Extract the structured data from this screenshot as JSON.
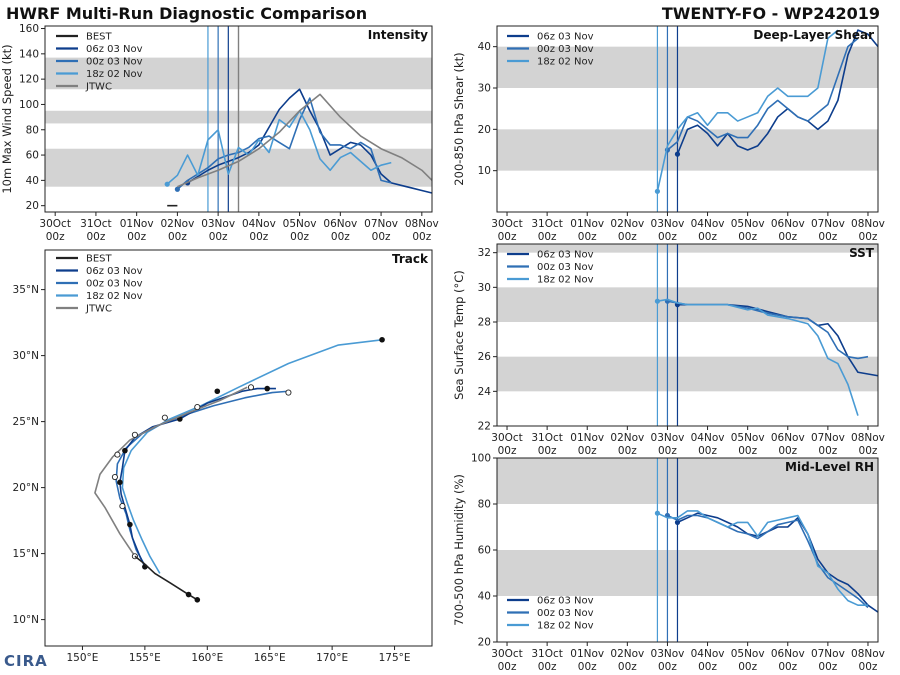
{
  "header": {
    "left_title": "HWRF Multi-Run Diagnostic Comparison",
    "right_title": "TWENTY-FO - WP242019"
  },
  "logo_text": "CIRA",
  "colors": {
    "best": "#222222",
    "run1": "#0d3d8c",
    "run2": "#2f6fb5",
    "run3": "#4a9bd4",
    "jtwc": "#808080",
    "band": "#d3d3d3",
    "vline1": "#4a9bd4",
    "vline2": "#2f6fb5",
    "vline3": "#0d3d8c"
  },
  "time_axis": {
    "ticks": [
      0,
      1,
      2,
      3,
      4,
      5,
      6,
      7,
      8,
      9,
      10,
      11
    ],
    "tick_labels_top": [
      "30Oct",
      "31Oct",
      "01Nov",
      "02Nov",
      "03Nov",
      "04Nov",
      "05Nov",
      "06Nov",
      "07Nov",
      "08Nov"
    ],
    "tick_labels_bottom": [
      "00z",
      "00z",
      "00z",
      "00z",
      "00z",
      "00z",
      "00z",
      "00z",
      "00z",
      "00z"
    ],
    "run_lines_days": [
      3.75,
      4.0,
      4.25
    ]
  },
  "chart_data": [
    {
      "id": "intensity",
      "type": "line",
      "title": "Intensity",
      "ylabel": "10m Max Wind Speed (kt)",
      "xlim": [
        -0.25,
        9.25
      ],
      "ylim": [
        15,
        162
      ],
      "yticks": [
        20,
        40,
        60,
        80,
        100,
        120,
        140,
        160
      ],
      "bands": [
        [
          35,
          65
        ],
        [
          85,
          95
        ],
        [
          112,
          137
        ]
      ],
      "legend": [
        "BEST",
        "06z 03 Nov",
        "00z 03 Nov",
        "18z 02 Nov",
        "JTWC"
      ],
      "series": [
        {
          "name": "BEST",
          "color_key": "best",
          "x": [
            2.75,
            3.0
          ],
          "y": [
            20,
            20
          ]
        },
        {
          "name": "06z 03 Nov",
          "color_key": "run1",
          "x": [
            3.25,
            3.5,
            3.75,
            4.0,
            4.25,
            4.5,
            4.75,
            5.0,
            5.25,
            5.5,
            5.75,
            6.0,
            6.25,
            6.5,
            6.75,
            7.0,
            7.25,
            7.5,
            7.75,
            8.0,
            8.25,
            8.5,
            8.75,
            9.0,
            9.25
          ],
          "y": [
            38,
            43,
            48,
            52,
            55,
            58,
            62,
            68,
            82,
            96,
            105,
            112,
            95,
            80,
            60,
            65,
            70,
            68,
            60,
            45,
            38,
            36,
            34,
            32,
            30
          ]
        },
        {
          "name": "00z 03 Nov",
          "color_key": "run2",
          "x": [
            3.0,
            3.25,
            3.5,
            3.75,
            4.0,
            4.25,
            4.5,
            4.75,
            5.0,
            5.25,
            5.5,
            5.75,
            6.0,
            6.25,
            6.5,
            6.75,
            7.0,
            7.25,
            7.5,
            7.75,
            8.0,
            8.25
          ],
          "y": [
            33,
            40,
            45,
            50,
            57,
            60,
            62,
            66,
            73,
            75,
            70,
            65,
            88,
            105,
            78,
            68,
            68,
            65,
            70,
            65,
            40,
            38
          ]
        },
        {
          "name": "18z 02 Nov",
          "color_key": "run3",
          "x": [
            2.75,
            3.0,
            3.25,
            3.5,
            3.75,
            4.0,
            4.25,
            4.5,
            4.75,
            5.0,
            5.25,
            5.5,
            5.75,
            6.0,
            6.25,
            6.5,
            6.75,
            7.0,
            7.25,
            7.5,
            7.75,
            8.0,
            8.25
          ],
          "y": [
            37,
            44,
            60,
            44,
            72,
            80,
            45,
            66,
            60,
            72,
            62,
            88,
            82,
            95,
            80,
            57,
            48,
            58,
            62,
            55,
            48,
            52,
            54
          ]
        },
        {
          "name": "JTWC",
          "color_key": "jtwc",
          "x": [
            3.0,
            3.5,
            4.0,
            4.5,
            5.0,
            5.5,
            6.0,
            6.5,
            7.0,
            7.5,
            8.0,
            8.5,
            9.0,
            9.25
          ],
          "y": [
            35,
            42,
            48,
            55,
            65,
            78,
            95,
            108,
            90,
            75,
            65,
            58,
            48,
            40
          ]
        }
      ]
    },
    {
      "id": "shear",
      "type": "line",
      "title": "Deep-Layer Shear",
      "ylabel": "200-850 hPa Shear (kt)",
      "xlim": [
        -0.25,
        9.25
      ],
      "ylim": [
        0,
        45
      ],
      "yticks": [
        10,
        20,
        30,
        40
      ],
      "bands": [
        [
          10,
          20
        ],
        [
          30,
          40
        ]
      ],
      "legend": [
        "06z 03 Nov",
        "00z 03 Nov",
        "18z 02 Nov"
      ],
      "series": [
        {
          "name": "06z 03 Nov",
          "color_key": "run1",
          "x": [
            4.25,
            4.5,
            4.75,
            5.0,
            5.25,
            5.5,
            5.75,
            6.0,
            6.25,
            6.5,
            6.75,
            7.0,
            7.25,
            7.5,
            7.75,
            8.0,
            8.25,
            8.5,
            8.75,
            9.0,
            9.25
          ],
          "y": [
            14,
            20,
            21,
            19,
            16,
            19,
            16,
            15,
            16,
            19,
            23,
            25,
            23,
            22,
            20,
            22,
            27,
            38,
            44,
            43,
            40
          ]
        },
        {
          "name": "00z 03 Nov",
          "color_key": "run2",
          "x": [
            4.0,
            4.25,
            4.5,
            4.75,
            5.0,
            5.25,
            5.5,
            5.75,
            6.0,
            6.25,
            6.5,
            6.75,
            7.0,
            7.25,
            7.5,
            7.75,
            8.0,
            8.25,
            8.5,
            8.75
          ],
          "y": [
            15,
            17,
            23,
            22,
            20,
            18,
            19,
            18,
            18,
            21,
            25,
            27,
            25,
            23,
            22,
            24,
            26,
            33,
            40,
            42
          ]
        },
        {
          "name": "18z 02 Nov",
          "color_key": "run3",
          "x": [
            3.75,
            4.0,
            4.25,
            4.5,
            4.75,
            5.0,
            5.25,
            5.5,
            5.75,
            6.0,
            6.25,
            6.5,
            6.75,
            7.0,
            7.25,
            7.5,
            7.75,
            8.0,
            8.25
          ],
          "y": [
            5,
            16,
            20,
            23,
            24,
            21,
            24,
            24,
            22,
            23,
            24,
            28,
            30,
            28,
            28,
            28,
            30,
            42,
            44
          ]
        }
      ]
    },
    {
      "id": "sst",
      "type": "line",
      "title": "SST",
      "ylabel": "Sea Surface Temp (°C)",
      "xlim": [
        -0.25,
        9.25
      ],
      "ylim": [
        22,
        32.5
      ],
      "yticks": [
        22,
        24,
        26,
        28,
        30,
        32
      ],
      "bands": [
        [
          24,
          26
        ],
        [
          28,
          30
        ],
        [
          32,
          32.5
        ]
      ],
      "legend": [
        "06z 03 Nov",
        "00z 03 Nov",
        "18z 02 Nov"
      ],
      "series": [
        {
          "name": "06z 03 Nov",
          "color_key": "run1",
          "x": [
            4.25,
            4.5,
            5.0,
            5.5,
            6.0,
            6.5,
            7.0,
            7.5,
            7.75,
            8.0,
            8.25,
            8.5,
            8.75,
            9.0,
            9.25
          ],
          "y": [
            29.0,
            29.0,
            29.0,
            29.0,
            28.9,
            28.6,
            28.3,
            28.2,
            27.8,
            27.9,
            27.2,
            26.0,
            25.1,
            25.0,
            24.9
          ]
        },
        {
          "name": "00z 03 Nov",
          "color_key": "run2",
          "x": [
            4.0,
            4.25,
            4.5,
            5.0,
            5.5,
            6.0,
            6.5,
            7.0,
            7.5,
            7.75,
            8.0,
            8.25,
            8.5,
            8.75,
            9.0
          ],
          "y": [
            29.2,
            29.1,
            29.0,
            29.0,
            29.0,
            28.8,
            28.5,
            28.3,
            28.2,
            27.8,
            27.4,
            26.4,
            26.0,
            25.9,
            26.0
          ]
        },
        {
          "name": "18z 02 Nov",
          "color_key": "run3",
          "x": [
            3.75,
            4.0,
            4.25,
            4.5,
            5.0,
            5.5,
            6.0,
            6.25,
            6.5,
            7.0,
            7.5,
            7.75,
            8.0,
            8.25,
            8.5,
            8.75
          ],
          "y": [
            29.2,
            29.3,
            29.1,
            29.0,
            29.0,
            29.0,
            28.7,
            28.8,
            28.4,
            28.2,
            27.9,
            27.2,
            25.9,
            25.6,
            24.4,
            22.6
          ]
        }
      ]
    },
    {
      "id": "rh",
      "type": "line",
      "title": "Mid-Level RH",
      "ylabel": "700-500 hPa Humidity (%)",
      "xlim": [
        -0.25,
        9.25
      ],
      "ylim": [
        20,
        100
      ],
      "yticks": [
        20,
        40,
        60,
        80,
        100
      ],
      "bands": [
        [
          40,
          60
        ],
        [
          80,
          100
        ]
      ],
      "legend": [
        "06z 03 Nov",
        "00z 03 Nov",
        "18z 02 Nov"
      ],
      "series": [
        {
          "name": "06z 03 Nov",
          "color_key": "run1",
          "x": [
            4.25,
            4.5,
            4.75,
            5.0,
            5.25,
            5.5,
            5.75,
            6.0,
            6.25,
            6.5,
            6.75,
            7.0,
            7.25,
            7.5,
            7.75,
            8.0,
            8.25,
            8.5,
            8.75,
            9.0,
            9.25
          ],
          "y": [
            72,
            74,
            76,
            75,
            74,
            72,
            70,
            67,
            66,
            68,
            70,
            70,
            74,
            67,
            56,
            50,
            47,
            45,
            41,
            36,
            33
          ]
        },
        {
          "name": "00z 03 Nov",
          "color_key": "run2",
          "x": [
            4.0,
            4.25,
            4.5,
            4.75,
            5.0,
            5.25,
            5.5,
            5.75,
            6.0,
            6.25,
            6.5,
            6.75,
            7.0,
            7.25,
            7.5,
            7.75,
            8.0,
            8.25,
            8.5,
            8.75,
            9.0
          ],
          "y": [
            75,
            73,
            75,
            75,
            74,
            72,
            70,
            68,
            67,
            65,
            68,
            71,
            72,
            73,
            64,
            54,
            48,
            45,
            42,
            39,
            35
          ]
        },
        {
          "name": "18z 02 Nov",
          "color_key": "run3",
          "x": [
            3.75,
            4.0,
            4.25,
            4.5,
            4.75,
            5.0,
            5.25,
            5.5,
            5.75,
            6.0,
            6.25,
            6.5,
            6.75,
            7.0,
            7.25,
            7.5,
            7.75,
            8.0,
            8.25,
            8.5,
            8.75,
            9.0
          ],
          "y": [
            76,
            74,
            74,
            77,
            77,
            74,
            72,
            70,
            72,
            72,
            66,
            72,
            73,
            74,
            75,
            67,
            53,
            50,
            43,
            38,
            36,
            36
          ]
        }
      ]
    },
    {
      "id": "track",
      "type": "line",
      "title": "Track",
      "xlim": [
        147,
        178
      ],
      "ylim": [
        8,
        38
      ],
      "xticks": [
        150,
        155,
        160,
        165,
        170,
        175
      ],
      "xtick_labels": [
        "150°E",
        "155°E",
        "160°E",
        "165°E",
        "170°E",
        "175°E"
      ],
      "yticks": [
        10,
        15,
        20,
        25,
        30,
        35
      ],
      "ytick_labels": [
        "10°N",
        "15°N",
        "20°N",
        "25°N",
        "30°N",
        "35°N"
      ],
      "legend": [
        "BEST",
        "06z 03 Nov",
        "00z 03 Nov",
        "18z 02 Nov",
        "JTWC"
      ],
      "series": [
        {
          "name": "BEST",
          "color_key": "best",
          "lon": [
            159.2,
            158.5,
            157.0,
            155.8,
            155.0,
            154.2
          ],
          "lat": [
            11.5,
            11.9,
            12.8,
            13.5,
            14.2,
            14.8
          ],
          "dots": [
            [
              159.2,
              11.5
            ],
            [
              158.5,
              11.9
            ]
          ]
        },
        {
          "name": "06z 03 Nov",
          "color_key": "run1",
          "lon": [
            155.0,
            154.6,
            154.0,
            153.8,
            153.4,
            153.1,
            153.0,
            153.2,
            153.4,
            154.2,
            155.6,
            157.8,
            160.0,
            162.8,
            164.0,
            165.5
          ],
          "lat": [
            14.0,
            14.8,
            16.2,
            17.2,
            18.5,
            19.5,
            20.4,
            21.5,
            22.8,
            23.8,
            24.6,
            25.2,
            26.4,
            27.3,
            27.5,
            27.5
          ],
          "dots": [
            [
              155.0,
              14.0
            ],
            [
              153.8,
              17.2
            ],
            [
              153.0,
              20.4
            ],
            [
              153.4,
              22.8
            ],
            [
              157.8,
              25.2
            ],
            [
              160.8,
              27.3
            ],
            [
              164.8,
              27.5
            ]
          ]
        },
        {
          "name": "00z 03 Nov",
          "color_key": "run2",
          "lon": [
            155.0,
            154.3,
            153.8,
            153.5,
            153.0,
            152.7,
            152.8,
            153.5,
            154.8,
            156.5,
            158.5,
            160.5,
            163.0,
            165.2,
            166.5
          ],
          "lat": [
            14.1,
            15.3,
            16.8,
            18.0,
            19.2,
            20.5,
            21.8,
            23.0,
            24.1,
            24.9,
            25.6,
            26.2,
            26.8,
            27.2,
            27.3
          ]
        },
        {
          "name": "18z 02 Nov",
          "color_key": "run3",
          "lon": [
            156.2,
            155.4,
            154.8,
            154.1,
            153.6,
            153.2,
            153.3,
            153.9,
            155.2,
            157.0,
            159.5,
            162.5,
            166.5,
            170.5,
            174.0
          ],
          "lat": [
            13.5,
            14.8,
            16.0,
            17.5,
            18.8,
            20.0,
            21.5,
            22.8,
            24.2,
            25.2,
            26.2,
            27.6,
            29.4,
            30.8,
            31.2
          ]
        },
        {
          "name": "JTWC",
          "color_key": "jtwc",
          "lon": [
            154.2,
            153.0,
            151.8,
            151.0,
            151.4,
            152.4,
            153.8,
            155.8,
            158.3,
            161.0,
            163.2
          ],
          "lat": [
            14.8,
            16.5,
            18.5,
            19.6,
            21.0,
            22.3,
            23.6,
            24.6,
            25.6,
            26.6,
            27.6
          ],
          "hollow": [
            [
              154.2,
              14.8
            ],
            [
              153.2,
              18.6
            ],
            [
              152.6,
              20.8
            ],
            [
              152.8,
              22.5
            ],
            [
              154.2,
              24.0
            ],
            [
              156.6,
              25.3
            ],
            [
              159.2,
              26.1
            ],
            [
              163.5,
              27.6
            ],
            [
              166.5,
              27.2
            ]
          ]
        }
      ]
    }
  ]
}
